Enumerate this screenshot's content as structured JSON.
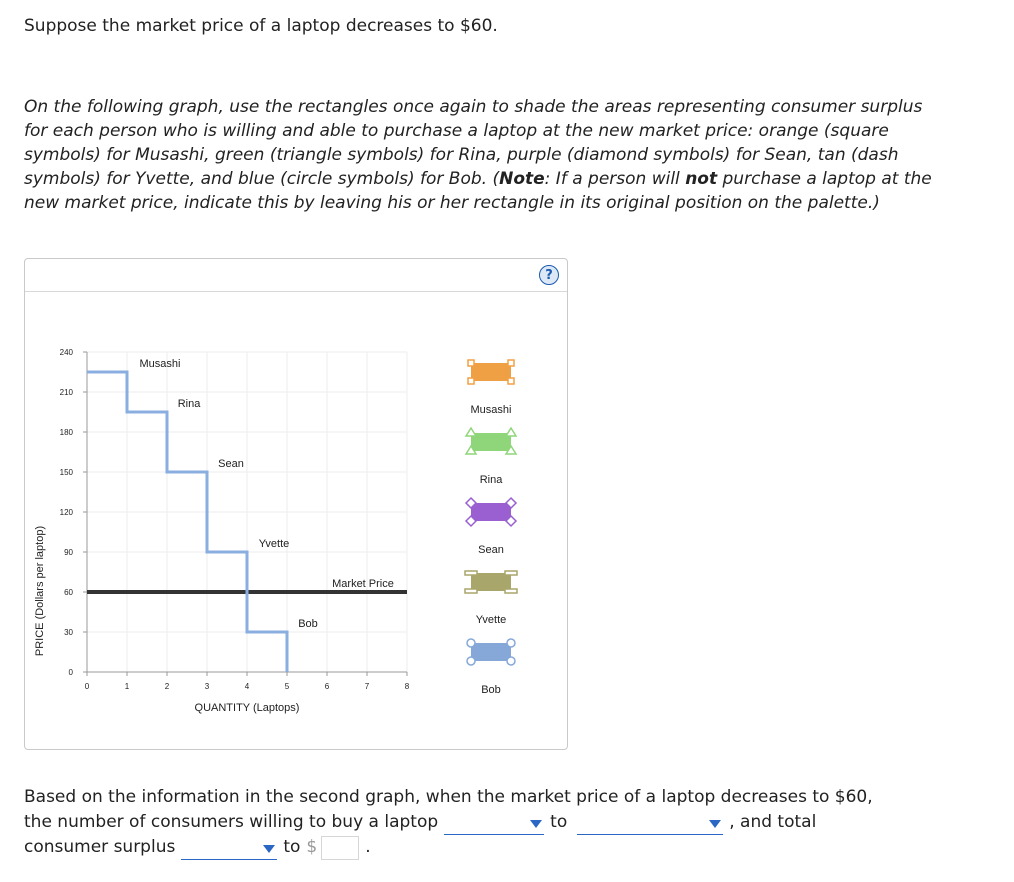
{
  "intro": "Suppose the market price of a laptop decreases to $60.",
  "instructions": {
    "part1": "On the following graph, use the rectangles once again to shade the areas representing consumer surplus for each person who is willing and able to purchase a laptop at the new market price: orange (square symbols) for Musashi, green (triangle symbols) for Rina, purple (diamond symbols) for Sean, tan (dash symbols) for Yvette, and blue (circle symbols) for Bob. (",
    "note_label": "Note",
    "part2": ": If a person will ",
    "not_label": "not",
    "part3": " purchase a laptop at the new market price, indicate this by leaving his or her rectangle in its original position on the palette.)"
  },
  "graph": {
    "help_symbol": "?",
    "y_axis_label": "PRICE (Dollars per laptop)",
    "x_axis_label": "QUANTITY (Laptops)",
    "y_ticks": [
      "240",
      "210",
      "180",
      "150",
      "120",
      "90",
      "60",
      "30",
      "0"
    ],
    "x_ticks": [
      "0",
      "1",
      "2",
      "3",
      "4",
      "5",
      "6",
      "7",
      "8"
    ],
    "demand_labels": [
      "Musashi",
      "Rina",
      "Sean",
      "Yvette",
      "Bob"
    ],
    "market_price_label": "Market Price",
    "market_price": 60,
    "palette": [
      {
        "name": "Musashi",
        "color": "#f0a044",
        "symbol": "square"
      },
      {
        "name": "Rina",
        "color": "#8fd67a",
        "symbol": "triangle"
      },
      {
        "name": "Sean",
        "color": "#9a5fd0",
        "symbol": "diamond"
      },
      {
        "name": "Yvette",
        "color": "#a8a66a",
        "symbol": "dash"
      },
      {
        "name": "Bob",
        "color": "#86a8d8",
        "symbol": "circle"
      }
    ]
  },
  "question": {
    "text1": "Based on the information in the second graph, when the market price of a laptop decreases to $60,",
    "text2": "the number of consumers willing to buy a laptop",
    "to1": "to",
    "text3": ", and total",
    "text4": "consumer surplus",
    "to2": "to",
    "dollar": "$",
    "period": "."
  }
}
